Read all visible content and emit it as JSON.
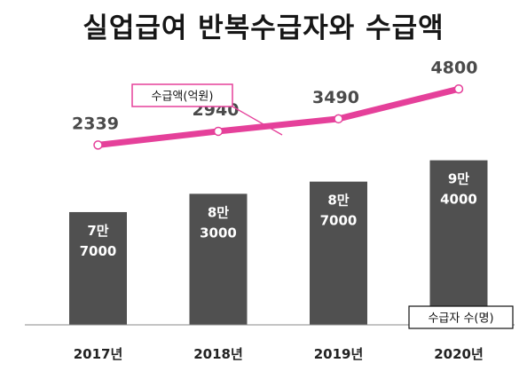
{
  "title": "실업급여 반복수급자와 수급액",
  "colors": {
    "bar": "#505050",
    "line": "#e5409a",
    "axis": "#888888"
  },
  "chart_data": {
    "type": "bar+line",
    "title": "실업급여 반복수급자와 수급액",
    "categories": [
      "2017년",
      "2018년",
      "2019년",
      "2020년"
    ],
    "bar_series": {
      "name": "수급자 수(명)",
      "values": [
        77000,
        83000,
        87000,
        94000
      ],
      "labels_line1": [
        "7만",
        "8만",
        "8만",
        "9만"
      ],
      "labels_line2": [
        "7000",
        "3000",
        "7000",
        "4000"
      ]
    },
    "line_series": {
      "name": "수급액(억원)",
      "values": [
        2339,
        2940,
        3490,
        4800
      ],
      "labels": [
        "2339",
        "2940",
        "3490",
        "4800"
      ]
    },
    "grid": false
  }
}
